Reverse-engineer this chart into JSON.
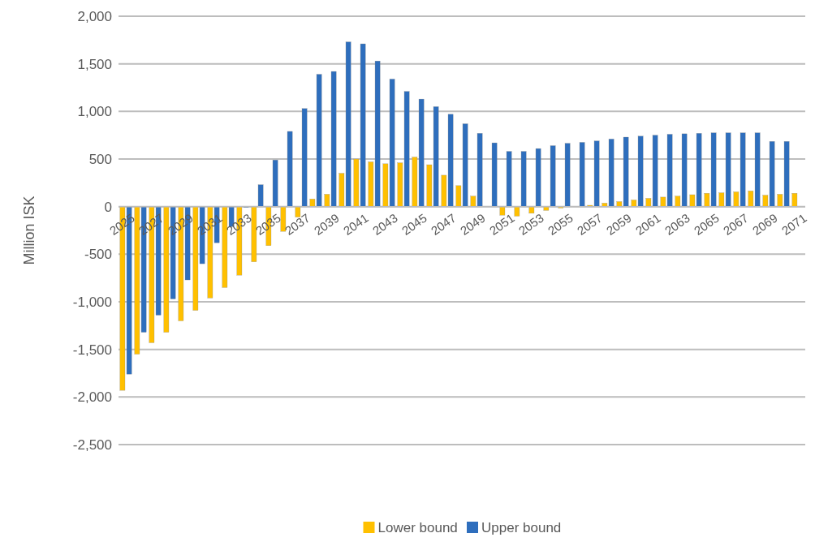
{
  "chart_data": {
    "type": "bar",
    "ylabel": "Million ISK",
    "categories": [
      "2025",
      null,
      "2027",
      null,
      "2029",
      null,
      "2031",
      null,
      "2033",
      null,
      "2035",
      null,
      "2037",
      null,
      "2039",
      null,
      "2041",
      null,
      "2043",
      null,
      "2045",
      null,
      "2047",
      null,
      "2049",
      null,
      "2051",
      null,
      "2053",
      null,
      "2055",
      null,
      "2057",
      null,
      "2059",
      null,
      "2061",
      null,
      "2063",
      null,
      "2065",
      null,
      "2067",
      null,
      "2069",
      null,
      "2071"
    ],
    "series": [
      {
        "name": "Lower bound",
        "color": "#ffc000",
        "values": [
          -1930,
          -1550,
          -1430,
          -1320,
          -1200,
          -1090,
          -960,
          -850,
          -720,
          -580,
          -410,
          -260,
          -110,
          80,
          130,
          350,
          500,
          470,
          450,
          460,
          520,
          440,
          330,
          220,
          110,
          0,
          -90,
          -100,
          -70,
          -40,
          -15,
          3,
          14,
          37,
          53,
          70,
          87,
          100,
          110,
          125,
          140,
          145,
          155,
          165,
          120,
          130,
          140
        ]
      },
      {
        "name": "Upper bound",
        "color": "#2e6ebd",
        "values": [
          -1760,
          -1320,
          -1140,
          -970,
          -770,
          -600,
          -380,
          -210,
          -10,
          230,
          490,
          790,
          1030,
          1390,
          1420,
          1730,
          1710,
          1530,
          1340,
          1210,
          1130,
          1050,
          970,
          870,
          770,
          670,
          580,
          580,
          610,
          640,
          665,
          675,
          690,
          710,
          730,
          740,
          750,
          760,
          765,
          770,
          775,
          775,
          775,
          775,
          685,
          685,
          null
        ]
      }
    ],
    "ylim": [
      -2500,
      2000
    ],
    "yticks": [
      {
        "value": -2500,
        "label": "-2,500"
      },
      {
        "value": -2000,
        "label": "-2,000"
      },
      {
        "value": -1500,
        "label": "-1,500"
      },
      {
        "value": -1000,
        "label": "-1,000"
      },
      -500,
      0,
      500,
      {
        "value": 1000,
        "label": "1,000"
      },
      {
        "value": 1500,
        "label": "1,500"
      },
      {
        "value": 2000,
        "label": "2,000"
      }
    ],
    "grid": "y",
    "legend": "bottom"
  }
}
